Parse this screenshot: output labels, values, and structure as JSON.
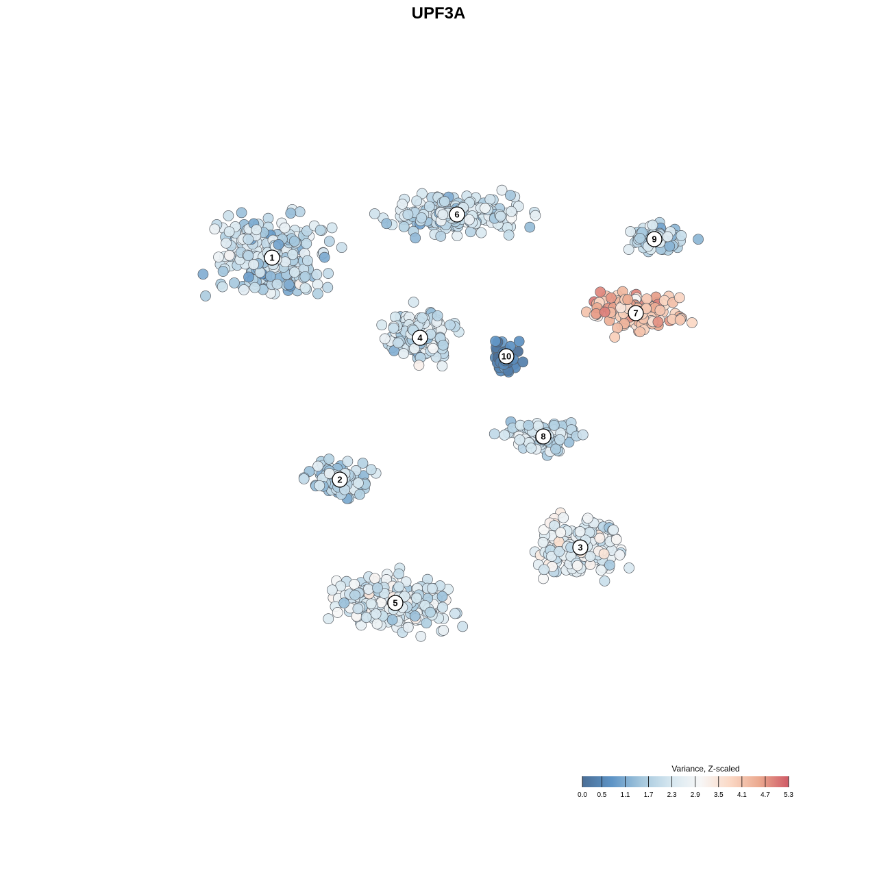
{
  "chart_data": {
    "type": "scatter",
    "title": "UPF3A",
    "legend": {
      "title": "Variance, Z-scaled",
      "placement": "bottom-right",
      "ticks": [
        "0.0",
        "0.5",
        "1.1",
        "1.7",
        "2.3",
        "2.9",
        "3.5",
        "4.1",
        "4.7",
        "5.3"
      ],
      "min": 0.0,
      "max": 5.3,
      "colors": [
        "#4a6e96",
        "#5e94c6",
        "#a4c7dd",
        "#d6e7f0",
        "#f7f7f7",
        "#fbd9c6",
        "#eba98f",
        "#cf5a66"
      ]
    },
    "clusters": [
      {
        "label": "1",
        "x": -13.5,
        "y": 13.0,
        "mean_z": 2.0
      },
      {
        "label": "2",
        "x": -8.0,
        "y": -5.0,
        "mean_z": 1.8
      },
      {
        "label": "3",
        "x": 11.5,
        "y": -10.5,
        "mean_z": 2.6
      },
      {
        "label": "4",
        "x": -1.5,
        "y": 6.5,
        "mean_z": 2.2
      },
      {
        "label": "5",
        "x": -3.5,
        "y": -15.0,
        "mean_z": 2.4
      },
      {
        "label": "6",
        "x": 1.5,
        "y": 16.5,
        "mean_z": 2.1
      },
      {
        "label": "7",
        "x": 16.0,
        "y": 8.5,
        "mean_z": 4.1
      },
      {
        "label": "8",
        "x": 8.5,
        "y": -1.5,
        "mean_z": 2.0
      },
      {
        "label": "9",
        "x": 17.5,
        "y": 14.5,
        "mean_z": 1.9
      },
      {
        "label": "10",
        "x": 5.5,
        "y": 5.0,
        "mean_z": 0.5
      }
    ]
  }
}
